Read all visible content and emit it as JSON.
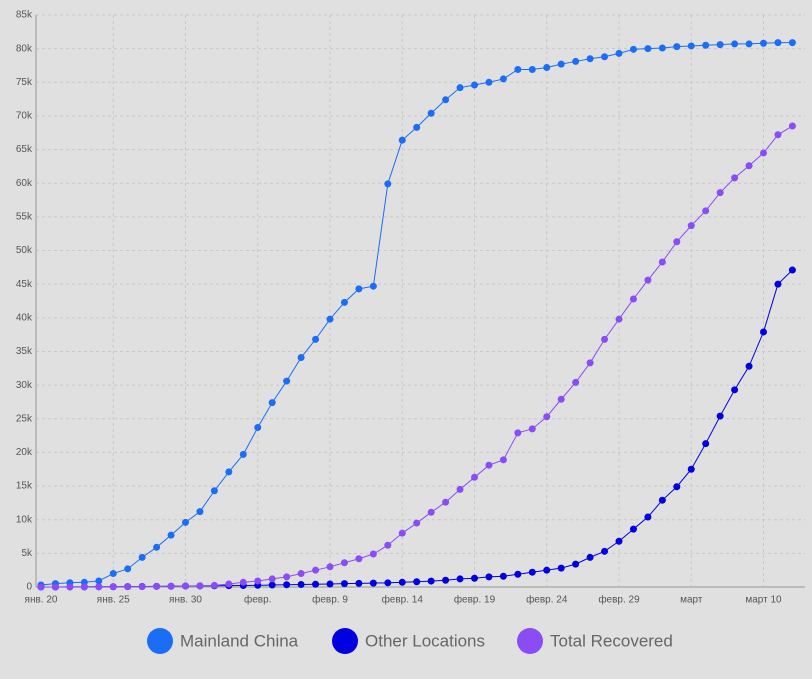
{
  "chart_data": {
    "type": "line",
    "categories": [
      "янв. 20",
      null,
      null,
      null,
      null,
      "янв. 25",
      null,
      null,
      null,
      null,
      "янв. 30",
      null,
      null,
      null,
      null,
      "февр.",
      null,
      null,
      null,
      null,
      "февр. 9",
      null,
      null,
      null,
      null,
      "февр. 14",
      null,
      null,
      null,
      null,
      "февр. 19",
      null,
      null,
      null,
      null,
      "февр. 24",
      null,
      null,
      null,
      null,
      "февр. 29",
      null,
      null,
      null,
      null,
      "март",
      null,
      null,
      null,
      null,
      "март 10",
      null,
      null
    ],
    "ylim": [
      0,
      85000
    ],
    "yticks": [
      0,
      {
        "value": 5000,
        "label": "5k"
      },
      {
        "value": 10000,
        "label": "10k"
      },
      {
        "value": 15000,
        "label": "15k"
      },
      {
        "value": 20000,
        "label": "20k"
      },
      {
        "value": 25000,
        "label": "25k"
      },
      {
        "value": 30000,
        "label": "30k"
      },
      {
        "value": 35000,
        "label": "35k"
      },
      {
        "value": 40000,
        "label": "40k"
      },
      {
        "value": 45000,
        "label": "45k"
      },
      {
        "value": 50000,
        "label": "50k"
      },
      {
        "value": 55000,
        "label": "55k"
      },
      {
        "value": 60000,
        "label": "60k"
      },
      {
        "value": 65000,
        "label": "65k"
      },
      {
        "value": 70000,
        "label": "70k"
      },
      {
        "value": 75000,
        "label": "75k"
      },
      {
        "value": 80000,
        "label": "80k"
      },
      {
        "value": 85000,
        "label": "85k"
      }
    ],
    "grid": true,
    "series": [
      {
        "name": "Mainland China",
        "color": "#1a6ef5",
        "values": [
          300,
          500,
          640,
          700,
          900,
          2000,
          2700,
          4400,
          5900,
          7700,
          9600,
          11200,
          14300,
          17100,
          19700,
          23700,
          27400,
          30600,
          34100,
          36800,
          39800,
          42300,
          44300,
          44700,
          59900,
          66400,
          68300,
          70400,
          72400,
          74200,
          74600,
          75000,
          75500,
          76900,
          76900,
          77200,
          77700,
          78100,
          78500,
          78800,
          79300,
          79900,
          80000,
          80100,
          80300,
          80400,
          80500,
          80600,
          80700,
          80700,
          80800,
          80900,
          80900
        ]
      },
      {
        "name": "Other Locations",
        "color": "#0000e0",
        "values": [
          0,
          0,
          10,
          20,
          30,
          40,
          60,
          80,
          100,
          120,
          140,
          160,
          180,
          200,
          220,
          250,
          290,
          330,
          370,
          410,
          450,
          500,
          540,
          580,
          620,
          700,
          780,
          880,
          1000,
          1200,
          1300,
          1500,
          1600,
          1900,
          2200,
          2500,
          2800,
          3400,
          4400,
          5300,
          6800,
          8600,
          10400,
          12900,
          14900,
          17500,
          21300,
          25400,
          29300,
          32800,
          37900,
          45000,
          47100
        ]
      },
      {
        "name": "Total Recovered",
        "color": "#8a4cf5",
        "values": [
          0,
          0,
          10,
          20,
          30,
          40,
          50,
          60,
          80,
          110,
          140,
          170,
          250,
          450,
          700,
          900,
          1200,
          1500,
          2000,
          2500,
          3000,
          3600,
          4200,
          4900,
          6200,
          8000,
          9500,
          11100,
          12600,
          14500,
          16300,
          18100,
          18900,
          22900,
          23500,
          25300,
          27900,
          30400,
          33300,
          36800,
          39800,
          42800,
          45600,
          48300,
          51300,
          53700,
          55900,
          58600,
          60800,
          62600,
          64500,
          67200,
          68500
        ]
      }
    ]
  }
}
